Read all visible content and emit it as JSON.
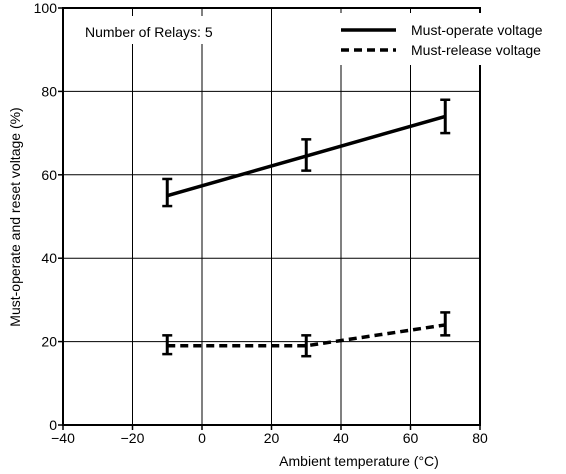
{
  "chart_data": {
    "type": "line",
    "xlabel": "Ambient temperature (°C)",
    "ylabel": "Must-operate and reset voltage (%)",
    "xlim": [
      -40,
      80
    ],
    "ylim": [
      0,
      100
    ],
    "x_ticks": [
      -40,
      -20,
      0,
      20,
      40,
      60,
      80
    ],
    "y_ticks": [
      0,
      20,
      40,
      60,
      80,
      100
    ],
    "x_tick_labels": [
      "−40",
      "−20",
      "0",
      "20",
      "40",
      "60",
      "80"
    ],
    "y_tick_labels": [
      "0",
      "20",
      "40",
      "60",
      "80",
      "100"
    ],
    "grid": true,
    "legend_position": "top-right",
    "annotation": "Number of Relays: 5",
    "series": [
      {
        "name": "Must-operate voltage",
        "style": "solid",
        "color": "#000000",
        "x": [
          -10,
          30,
          70
        ],
        "y": [
          55,
          64.5,
          74
        ],
        "error_low": [
          52.5,
          61,
          70
        ],
        "error_high": [
          59,
          68.5,
          78
        ]
      },
      {
        "name": "Must-release voltage",
        "style": "dashed",
        "color": "#000000",
        "x": [
          -10,
          30,
          70
        ],
        "y": [
          19,
          19,
          24
        ],
        "error_low": [
          17,
          16.5,
          21.5
        ],
        "error_high": [
          21.5,
          21.5,
          27
        ]
      }
    ]
  }
}
